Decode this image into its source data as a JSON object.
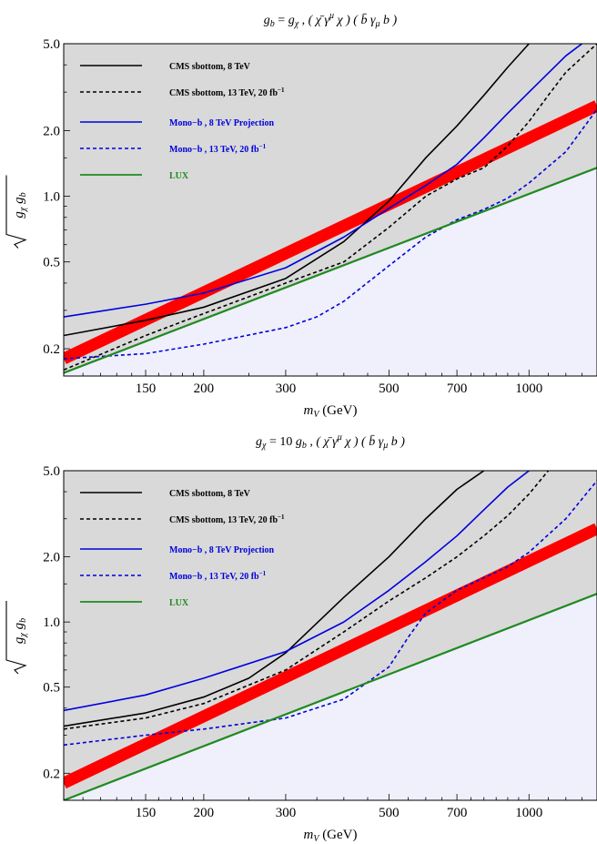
{
  "chart_data": [
    {
      "type": "line",
      "title": "g_b = g_χ , ( χ̄ γ^μ χ ) ( b̄ γ_μ b )",
      "title_parts": {
        "lhs": "g",
        "lhs_sub": "b",
        "eq": " = ",
        "rhs": "g",
        "rhs_sub": "χ",
        "op": "( χ̄ γ",
        "op_sup": "μ",
        "op_mid": " χ ) ( b̄ γ",
        "op_sub": "μ",
        "op_end": " b )"
      },
      "xlabel": "m_V (GeV)",
      "xlabel_parts": {
        "sym": "m",
        "sub": "V",
        "unit": " (GeV)"
      },
      "ylabel": "√(g_χ g_b)",
      "ylabel_parts": {
        "sym1": "g",
        "sub1": "χ",
        "sym2": "g",
        "sub2": "b"
      },
      "x_scale": "log",
      "y_scale": "log",
      "xlim": [
        100,
        1400
      ],
      "ylim": [
        0.15,
        5.0
      ],
      "xticks": [
        150,
        200,
        300,
        500,
        700,
        1000
      ],
      "xtick_labels": [
        "150",
        "200",
        "300",
        "500",
        "700",
        "1000"
      ],
      "yticks": [
        0.2,
        0.5,
        1.0,
        2.0,
        5.0
      ],
      "ytick_labels": [
        "0.2",
        "0.5",
        "1.0",
        "2.0",
        "5.0"
      ],
      "legend_position": "top-left",
      "excluded_fill": "#d9d9d9",
      "allowed_fill": "#eff0fb",
      "series": [
        {
          "name": "CMS sbottom, 8 TeV",
          "color": "#000000",
          "dash": "solid",
          "x": [
            100,
            150,
            200,
            300,
            400,
            500,
            600,
            700,
            800,
            900,
            1000
          ],
          "y": [
            0.23,
            0.27,
            0.31,
            0.42,
            0.62,
            0.95,
            1.5,
            2.1,
            2.9,
            3.9,
            5.0
          ]
        },
        {
          "name": "CMS sbottom, 13 TeV, 20 fb⁻¹",
          "name_text": "CMS sbottom, 13 TeV, 20 fb",
          "name_sup": "−1",
          "color": "#000000",
          "dash": "dashed",
          "x": [
            100,
            150,
            200,
            300,
            400,
            500,
            600,
            700,
            800,
            900,
            1000,
            1100,
            1200,
            1400
          ],
          "y": [
            0.16,
            0.23,
            0.29,
            0.4,
            0.5,
            0.72,
            1.0,
            1.2,
            1.35,
            1.7,
            2.2,
            2.9,
            3.7,
            5.0
          ]
        },
        {
          "name": "Mono−b , 8 TeV Projection",
          "color": "#0000dd",
          "dash": "solid",
          "x": [
            100,
            150,
            200,
            300,
            400,
            500,
            600,
            700,
            800,
            900,
            1000,
            1200,
            1300
          ],
          "y": [
            0.28,
            0.32,
            0.36,
            0.47,
            0.65,
            0.88,
            1.12,
            1.4,
            1.85,
            2.4,
            3.0,
            4.4,
            5.0
          ]
        },
        {
          "name": "Mono−b , 13 TeV, 20 fb⁻¹",
          "name_text": "Mono−b , 13 TeV, 20 fb",
          "name_sup": "−1",
          "color": "#0000dd",
          "dash": "dashed",
          "x": [
            100,
            150,
            200,
            300,
            350,
            400,
            500,
            600,
            700,
            800,
            900,
            1000,
            1200,
            1400
          ],
          "y": [
            0.18,
            0.19,
            0.21,
            0.25,
            0.28,
            0.33,
            0.48,
            0.65,
            0.78,
            0.87,
            0.98,
            1.15,
            1.6,
            2.5
          ]
        },
        {
          "name": "LUX",
          "color": "#1f8a1f",
          "dash": "solid",
          "x": [
            100,
            1400
          ],
          "y": [
            0.155,
            1.35
          ]
        }
      ],
      "theory_band": {
        "color": "#ff0000",
        "x": [
          100,
          1400
        ],
        "y": [
          0.18,
          2.6
        ]
      }
    },
    {
      "type": "line",
      "title": "g_χ = 10 g_b , ( χ̄ γ^μ χ ) ( b̄ γ_μ b )",
      "title_parts": {
        "lhs": "g",
        "lhs_sub": "χ",
        "eq": " = 10 ",
        "rhs": "g",
        "rhs_sub": "b",
        "op": "( χ̄ γ",
        "op_sup": "μ",
        "op_mid": " χ ) ( b̄ γ",
        "op_sub": "μ",
        "op_end": " b )"
      },
      "xlabel": "m_V (GeV)",
      "xlabel_parts": {
        "sym": "m",
        "sub": "V",
        "unit": " (GeV)"
      },
      "ylabel": "√(g_χ g_b)",
      "ylabel_parts": {
        "sym1": "g",
        "sub1": "χ",
        "sym2": "g",
        "sub2": "b"
      },
      "x_scale": "log",
      "y_scale": "log",
      "xlim": [
        100,
        1400
      ],
      "ylim": [
        0.15,
        5.0
      ],
      "xticks": [
        150,
        200,
        300,
        500,
        700,
        1000
      ],
      "xtick_labels": [
        "150",
        "200",
        "300",
        "500",
        "700",
        "1000"
      ],
      "yticks": [
        0.2,
        0.5,
        1.0,
        2.0,
        5.0
      ],
      "ytick_labels": [
        "0.2",
        "0.5",
        "1.0",
        "2.0",
        "5.0"
      ],
      "legend_position": "top-left",
      "excluded_fill": "#d9d9d9",
      "allowed_fill": "#eff0fb",
      "series": [
        {
          "name": "CMS sbottom, 8 TeV",
          "color": "#000000",
          "dash": "solid",
          "x": [
            100,
            150,
            200,
            250,
            300,
            400,
            500,
            600,
            700,
            800
          ],
          "y": [
            0.33,
            0.38,
            0.45,
            0.55,
            0.72,
            1.3,
            2.0,
            3.0,
            4.1,
            5.0
          ]
        },
        {
          "name": "CMS sbottom, 13 TeV, 20 fb⁻¹",
          "name_text": "CMS sbottom, 13 TeV, 20 fb",
          "name_sup": "−1",
          "color": "#000000",
          "dash": "dashed",
          "x": [
            100,
            150,
            200,
            300,
            400,
            500,
            600,
            700,
            800,
            900,
            1000,
            1100
          ],
          "y": [
            0.32,
            0.36,
            0.42,
            0.6,
            0.9,
            1.25,
            1.6,
            2.0,
            2.5,
            3.1,
            3.9,
            5.0
          ]
        },
        {
          "name": "Mono−b , 8 TeV Projection",
          "color": "#0000dd",
          "dash": "solid",
          "x": [
            100,
            150,
            200,
            300,
            400,
            500,
            600,
            700,
            800,
            900,
            1000
          ],
          "y": [
            0.39,
            0.46,
            0.55,
            0.73,
            1.0,
            1.4,
            1.9,
            2.5,
            3.3,
            4.2,
            5.0
          ]
        },
        {
          "name": "Mono−b , 13 TeV, 20 fb⁻¹",
          "name_text": "Mono−b , 13 TeV, 20 fb",
          "name_sup": "−1",
          "color": "#0000dd",
          "dash": "dashed",
          "x": [
            100,
            150,
            200,
            300,
            400,
            500,
            550,
            600,
            700,
            800,
            900,
            1000,
            1200,
            1400
          ],
          "y": [
            0.27,
            0.3,
            0.32,
            0.36,
            0.44,
            0.62,
            0.85,
            1.1,
            1.4,
            1.6,
            1.8,
            2.1,
            3.0,
            4.5
          ]
        },
        {
          "name": "LUX",
          "color": "#1f8a1f",
          "dash": "solid",
          "x": [
            100,
            1400
          ],
          "y": [
            0.15,
            1.35
          ]
        }
      ],
      "theory_band": {
        "color": "#ff0000",
        "x": [
          100,
          1400
        ],
        "y": [
          0.18,
          2.7
        ]
      }
    }
  ]
}
